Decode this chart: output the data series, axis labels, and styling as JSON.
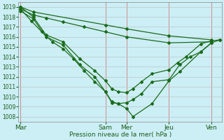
{
  "xlabel": "Pression niveau de la mer( hPa )",
  "background_color": "#cceef5",
  "line_color": "#1a6b1a",
  "ylim": [
    1007.5,
    1019.5
  ],
  "yticks": [
    1008,
    1009,
    1010,
    1011,
    1012,
    1013,
    1014,
    1015,
    1016,
    1017,
    1018,
    1019
  ],
  "xtick_labels": [
    "Mar",
    "Sam",
    "Mer",
    "Jeu",
    "Ven"
  ],
  "xtick_positions": [
    0,
    4,
    5,
    7,
    9
  ],
  "xlim": [
    -0.1,
    9.5
  ],
  "series": [
    {
      "x": [
        0,
        0.6,
        4,
        5,
        7,
        9
      ],
      "y": [
        1019.0,
        1018.5,
        1017.2,
        1016.8,
        1016.1,
        1015.7
      ]
    },
    {
      "x": [
        0,
        0.6,
        1.2,
        2.0,
        3.0,
        4.0,
        5.0,
        7.0,
        9.0
      ],
      "y": [
        1018.8,
        1018.2,
        1017.9,
        1017.5,
        1017.0,
        1016.5,
        1016.0,
        1015.4,
        1015.5
      ]
    },
    {
      "x": [
        0,
        0.6,
        1.2,
        2.0,
        2.8,
        3.5,
        4.0,
        4.3,
        4.6,
        5.0,
        5.3,
        5.7,
        6.2,
        7.0,
        7.4,
        7.8,
        8.5,
        9.0,
        9.4
      ],
      "y": [
        1019.0,
        1018.0,
        1016.2,
        1015.5,
        1013.8,
        1012.6,
        1011.6,
        1010.8,
        1010.5,
        1010.4,
        1010.8,
        1011.5,
        1012.3,
        1012.7,
        1013.4,
        1014.0,
        1015.3,
        1015.6,
        1015.7
      ]
    },
    {
      "x": [
        0,
        0.6,
        1.2,
        2.0,
        2.8,
        3.5,
        4.0,
        4.3,
        4.6,
        5.0,
        5.3,
        5.7,
        6.2,
        7.0,
        7.5,
        8.0,
        8.5,
        9.0,
        9.4
      ],
      "y": [
        1018.6,
        1017.8,
        1016.0,
        1015.2,
        1013.2,
        1012.0,
        1010.5,
        1009.4,
        1009.3,
        1009.4,
        1009.7,
        1010.3,
        1011.5,
        1011.7,
        1013.2,
        1014.0,
        1014.5,
        1015.4,
        1015.7
      ]
    },
    {
      "x": [
        0,
        0.5,
        1.0,
        1.5,
        2.0,
        2.5,
        3.0,
        3.5,
        4.0,
        4.3,
        4.6,
        5.0,
        5.3,
        6.2,
        7.0,
        7.5,
        8.5,
        9.0
      ],
      "y": [
        1018.8,
        1017.6,
        1016.5,
        1015.5,
        1014.8,
        1013.8,
        1012.6,
        1011.5,
        1010.5,
        1009.5,
        1009.3,
        1008.8,
        1008.0,
        1009.3,
        1011.6,
        1012.5,
        1014.5,
        1015.4
      ]
    }
  ],
  "vline_positions": [
    0,
    4,
    5,
    7,
    9
  ],
  "vline_color": "#d08080",
  "hgrid_color": "#b8c8c8"
}
